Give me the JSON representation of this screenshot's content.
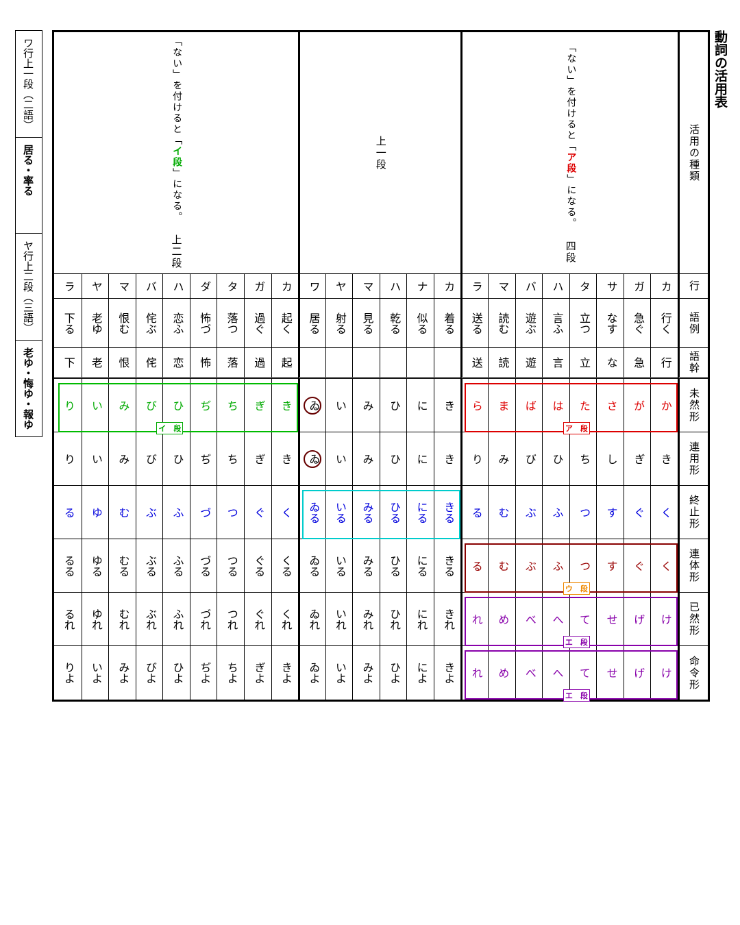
{
  "title": "動詞の活用表",
  "side_notes": [
    "ワ行上一段（二語）",
    "居る・率る",
    "ヤ行上二段（三語）",
    "老ゆ・悔ゆ・報ゆ"
  ],
  "row_labels": [
    "活用の種類",
    "行",
    "語例",
    "語幹",
    "未然形",
    "連用形",
    "終止形",
    "連体形",
    "已然形",
    "命令形"
  ],
  "group_headers": {
    "yodan": {
      "title": "四段",
      "note_pre": "「ない」を付けると「",
      "note_em": "ア段",
      "note_post": "」になる。"
    },
    "kami1": {
      "title": "上一段"
    },
    "kami2": {
      "title": "上二段",
      "note_pre": "「ない」を付けると「",
      "note_em": "イ段",
      "note_post": "」になる。"
    }
  },
  "yodan": {
    "gyou": [
      "カ",
      "ガ",
      "サ",
      "タ",
      "ハ",
      "バ",
      "マ",
      "ラ"
    ],
    "gorei": [
      "行く",
      "急ぐ",
      "なす",
      "立つ",
      "言ふ",
      "遊ぶ",
      "読む",
      "送る"
    ],
    "gokan": [
      "行",
      "急",
      "な",
      "立",
      "言",
      "遊",
      "読",
      "送"
    ],
    "mizen": [
      "か",
      "が",
      "さ",
      "た",
      "は",
      "ば",
      "ま",
      "ら"
    ],
    "renyo": [
      "き",
      "ぎ",
      "し",
      "ち",
      "ひ",
      "び",
      "み",
      "り"
    ],
    "shushi": [
      "く",
      "ぐ",
      "す",
      "つ",
      "ふ",
      "ぶ",
      "む",
      "る"
    ],
    "rentai": [
      "く",
      "ぐ",
      "す",
      "つ",
      "ふ",
      "ぶ",
      "む",
      "る"
    ],
    "izen": [
      "け",
      "げ",
      "せ",
      "て",
      "へ",
      "べ",
      "め",
      "れ"
    ],
    "meirei": [
      "け",
      "げ",
      "せ",
      "て",
      "へ",
      "べ",
      "め",
      "れ"
    ]
  },
  "kami1": {
    "gyou": [
      "カ",
      "ナ",
      "ハ",
      "マ",
      "ヤ",
      "ワ"
    ],
    "gorei": [
      "着る",
      "似る",
      "乾る",
      "見る",
      "射る",
      "居る"
    ],
    "gokan": [
      "",
      "",
      "",
      "",
      "",
      ""
    ],
    "mizen": [
      "き",
      "に",
      "ひ",
      "み",
      "い",
      "ゐ"
    ],
    "renyo": [
      "き",
      "に",
      "ひ",
      "み",
      "い",
      "ゐ"
    ],
    "shushi": [
      "きる",
      "にる",
      "ひる",
      "みる",
      "いる",
      "ゐる"
    ],
    "rentai": [
      "きる",
      "にる",
      "ひる",
      "みる",
      "いる",
      "ゐる"
    ],
    "izen": [
      "きれ",
      "にれ",
      "ひれ",
      "みれ",
      "いれ",
      "ゐれ"
    ],
    "meirei": [
      "きよ",
      "によ",
      "ひよ",
      "みよ",
      "いよ",
      "ゐよ"
    ]
  },
  "kami2": {
    "gyou": [
      "カ",
      "ガ",
      "タ",
      "ダ",
      "ハ",
      "バ",
      "マ",
      "ヤ",
      "ラ"
    ],
    "gorei": [
      "起く",
      "過ぐ",
      "落つ",
      "怖づ",
      "恋ふ",
      "侘ぶ",
      "恨む",
      "老ゆ",
      "下る"
    ],
    "gokan": [
      "起",
      "過",
      "落",
      "怖",
      "恋",
      "侘",
      "恨",
      "老",
      "下"
    ],
    "mizen": [
      "き",
      "ぎ",
      "ち",
      "ぢ",
      "ひ",
      "び",
      "み",
      "い",
      "り"
    ],
    "renyo": [
      "き",
      "ぎ",
      "ち",
      "ぢ",
      "ひ",
      "び",
      "み",
      "い",
      "り"
    ],
    "shushi": [
      "く",
      "ぐ",
      "つ",
      "づ",
      "ふ",
      "ぶ",
      "む",
      "ゆ",
      "る"
    ],
    "rentai": [
      "くる",
      "ぐる",
      "つる",
      "づる",
      "ふる",
      "ぶる",
      "むる",
      "ゆる",
      "るる"
    ],
    "izen": [
      "くれ",
      "ぐれ",
      "つれ",
      "づれ",
      "ふれ",
      "ぶれ",
      "むれ",
      "ゆれ",
      "るれ"
    ],
    "meirei": [
      "きよ",
      "ぎよ",
      "ちよ",
      "ぢよ",
      "ひよ",
      "びよ",
      "みよ",
      "いよ",
      "りよ"
    ]
  },
  "colors": {
    "mizen_yodan": "red",
    "mizen_kami2": "green",
    "shushi": "blue",
    "rentai_yodan": "darkred",
    "izen_yodan": "purple",
    "meirei_yodan": "purple"
  },
  "tags": {
    "a_dan": "ア　段",
    "i_dan": "イ　段",
    "u_dan": "ウ　段",
    "e_dan": "エ　段"
  }
}
